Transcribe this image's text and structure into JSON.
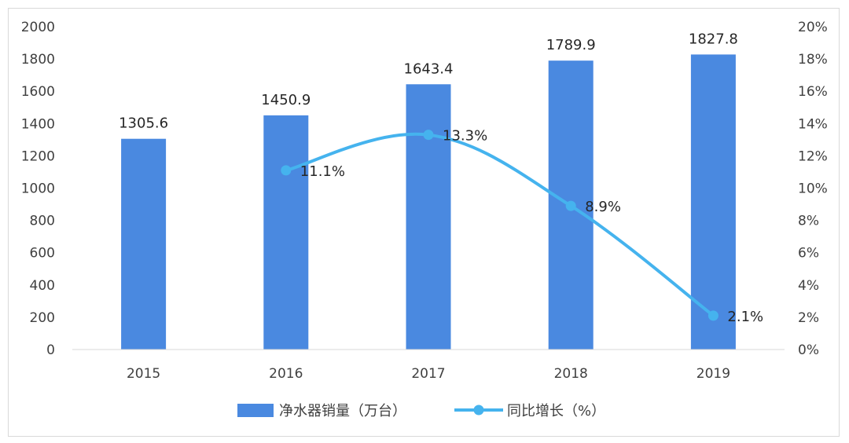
{
  "chart_data": {
    "type": "bar+line",
    "categories": [
      "2015",
      "2016",
      "2017",
      "2018",
      "2019"
    ],
    "series": [
      {
        "name": "净水器销量（万台）",
        "type": "bar",
        "axis": "left",
        "color": "#4a89e0",
        "values": [
          1305.6,
          1450.9,
          1643.4,
          1789.9,
          1827.8
        ],
        "labels": [
          "1305.6",
          "1450.9",
          "1643.4",
          "1789.9",
          "1827.8"
        ]
      },
      {
        "name": "同比增长（%）",
        "type": "line",
        "axis": "right",
        "color": "#45b3ee",
        "smooth": true,
        "values": [
          null,
          11.1,
          13.3,
          8.9,
          2.1
        ],
        "labels": [
          "",
          "11.1%",
          "13.3%",
          "8.9%",
          "2.1%"
        ]
      }
    ],
    "y_left": {
      "min": 0,
      "max": 2000,
      "ticks": [
        "0",
        "200",
        "400",
        "600",
        "800",
        "1000",
        "1200",
        "1400",
        "1600",
        "1800",
        "2000"
      ]
    },
    "y_right": {
      "min": 0,
      "max": 20,
      "ticks": [
        "0%",
        "2%",
        "4%",
        "6%",
        "8%",
        "10%",
        "12%",
        "14%",
        "16%",
        "18%",
        "20%"
      ]
    },
    "grid": false,
    "legend_position": "bottom"
  }
}
